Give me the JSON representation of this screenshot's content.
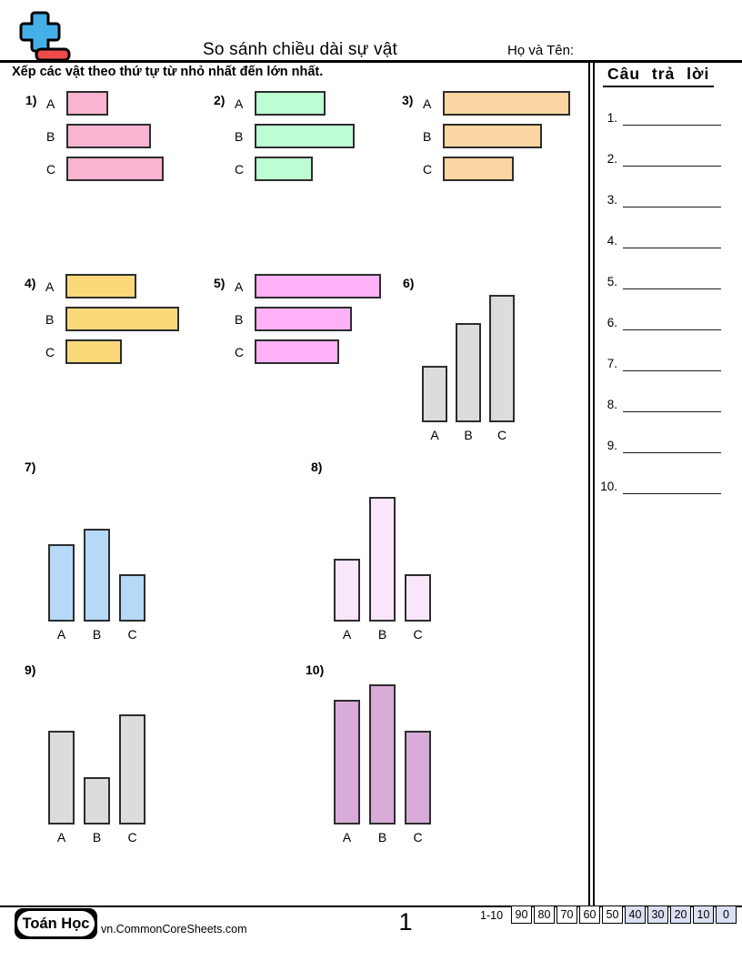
{
  "header": {
    "title": "So sánh chiều dài sự vật",
    "name_label": "Họ và Tên:",
    "instruction": "Xếp các vật theo thứ tự từ nhỏ nhất đến lớn nhất.",
    "logo": "plus-minus-math-logo",
    "logo_colors": {
      "plus": "#45b0e8",
      "minus": "#ef4b4b",
      "outline": "#000000"
    }
  },
  "answers": {
    "title": "Câu trả lời",
    "items": [
      "1.",
      "2.",
      "3.",
      "4.",
      "5.",
      "6.",
      "7.",
      "8.",
      "9.",
      "10."
    ]
  },
  "problems": [
    {
      "number": "1)",
      "type": "horizontal",
      "fill": "#f9b4d2",
      "bars": [
        {
          "label": "A",
          "length": 46
        },
        {
          "label": "B",
          "length": 93
        },
        {
          "label": "C",
          "length": 107
        }
      ]
    },
    {
      "number": "2)",
      "type": "horizontal",
      "fill": "#bdfdd3",
      "bars": [
        {
          "label": "A",
          "length": 78
        },
        {
          "label": "B",
          "length": 110
        },
        {
          "label": "C",
          "length": 64
        }
      ]
    },
    {
      "number": "3)",
      "type": "horizontal",
      "fill": "#fcd6a2",
      "bars": [
        {
          "label": "A",
          "length": 140
        },
        {
          "label": "B",
          "length": 109
        },
        {
          "label": "C",
          "length": 78
        }
      ]
    },
    {
      "number": "4)",
      "type": "horizontal",
      "fill": "#fbd97b",
      "bars": [
        {
          "label": "A",
          "length": 78
        },
        {
          "label": "B",
          "length": 125
        },
        {
          "label": "C",
          "length": 62
        }
      ]
    },
    {
      "number": "5)",
      "type": "horizontal",
      "fill": "#feb1f6",
      "bars": [
        {
          "label": "A",
          "length": 139
        },
        {
          "label": "B",
          "length": 107
        },
        {
          "label": "C",
          "length": 93
        }
      ]
    },
    {
      "number": "6)",
      "type": "vertical",
      "fill": "#dcdcdc",
      "bars": [
        {
          "label": "A",
          "length": 62
        },
        {
          "label": "B",
          "length": 109
        },
        {
          "label": "C",
          "length": 140
        }
      ]
    },
    {
      "number": "7)",
      "type": "vertical",
      "fill": "#b6d9f8",
      "bars": [
        {
          "label": "A",
          "length": 85
        },
        {
          "label": "B",
          "length": 102
        },
        {
          "label": "C",
          "length": 52
        }
      ]
    },
    {
      "number": "8)",
      "type": "vertical",
      "fill": "#f9e6fa",
      "bars": [
        {
          "label": "A",
          "length": 69
        },
        {
          "label": "B",
          "length": 137
        },
        {
          "label": "C",
          "length": 52
        }
      ]
    },
    {
      "number": "9)",
      "type": "vertical",
      "fill": "#dcdcdc",
      "bars": [
        {
          "label": "A",
          "length": 103
        },
        {
          "label": "B",
          "length": 52
        },
        {
          "label": "C",
          "length": 121
        }
      ]
    },
    {
      "number": "10)",
      "type": "vertical",
      "fill": "#d8abd8",
      "bars": [
        {
          "label": "A",
          "length": 137
        },
        {
          "label": "B",
          "length": 154
        },
        {
          "label": "C",
          "length": 103
        }
      ]
    }
  ],
  "bar_border_color": "#2d2d2d",
  "footer": {
    "badge": "Toán Học",
    "website": "vn.CommonCoreSheets.com",
    "page_number": "1",
    "grade_label": "1-10",
    "grade_scores": [
      "90",
      "80",
      "70",
      "60",
      "50",
      "40",
      "30",
      "20",
      "10",
      "0"
    ],
    "grade_shade_color": "#dbe0f5"
  }
}
